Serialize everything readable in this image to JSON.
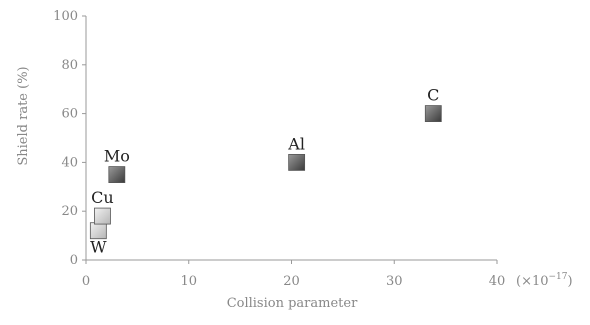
{
  "chart_data": {
    "type": "scatter",
    "title": "",
    "xlabel": "Collision parameter",
    "ylabel": "Shield rate (%)",
    "x_unit": "(×10",
    "x_unit_exp": "−17",
    "x_unit_close": ")",
    "xlim": [
      0,
      40
    ],
    "ylim": [
      0,
      100
    ],
    "xticks": [
      0,
      10,
      20,
      30,
      40
    ],
    "yticks": [
      0,
      20,
      40,
      60,
      80,
      100
    ],
    "grid": false,
    "legend": "none",
    "points": [
      {
        "label": "W",
        "x": 1.2,
        "y": 12,
        "style": "light",
        "label_pos": "below"
      },
      {
        "label": "Cu",
        "x": 1.6,
        "y": 18,
        "style": "light",
        "label_pos": "above"
      },
      {
        "label": "Mo",
        "x": 3.0,
        "y": 35,
        "style": "dark",
        "label_pos": "above"
      },
      {
        "label": "Al",
        "x": 20.5,
        "y": 40,
        "style": "dark",
        "label_pos": "above"
      },
      {
        "label": "C",
        "x": 33.8,
        "y": 60,
        "style": "dark",
        "label_pos": "above"
      }
    ]
  },
  "colors": {
    "axis": "#999999",
    "dark_marker_top": "#9a9a9a",
    "dark_marker_bottom": "#3a3a3a",
    "light_marker_top": "#f2f2f2",
    "light_marker_bottom": "#b5b5b5",
    "marker_edge": "#555555"
  }
}
